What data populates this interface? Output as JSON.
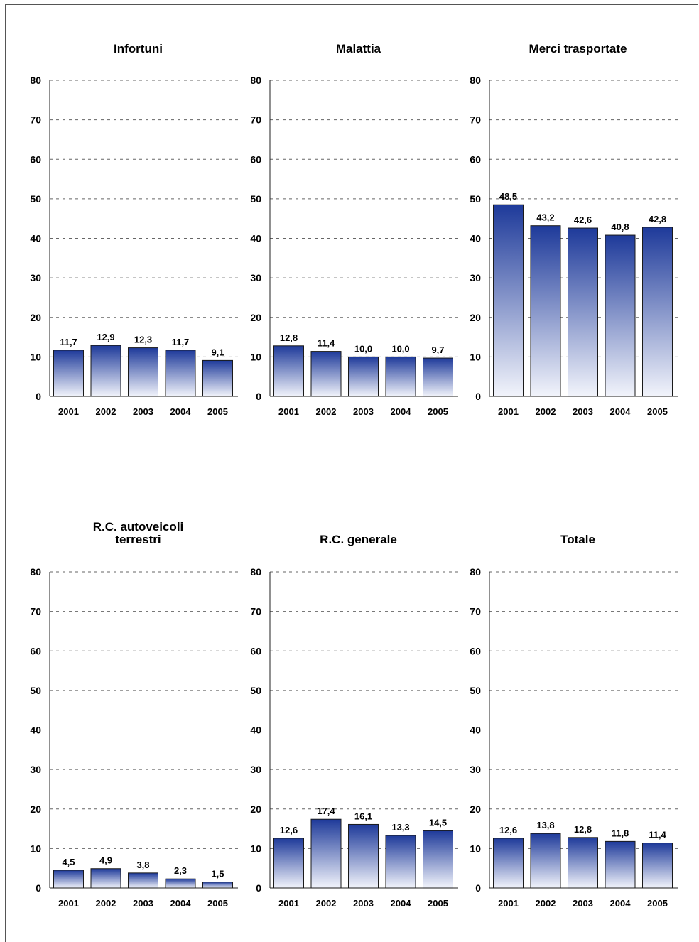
{
  "chart_data": [
    {
      "type": "bar",
      "title": [
        "Infortuni"
      ],
      "categories": [
        "2001",
        "2002",
        "2003",
        "2004",
        "2005"
      ],
      "values": [
        11.7,
        12.9,
        12.3,
        11.7,
        9.1
      ],
      "value_labels": [
        "11,7",
        "12,9",
        "12,3",
        "11,7",
        "9,1"
      ],
      "yticks": [
        "0",
        "10",
        "20",
        "30",
        "40",
        "50",
        "60",
        "70",
        "80"
      ],
      "ylim": [
        0,
        80
      ],
      "grid": "dashed horizontal"
    },
    {
      "type": "bar",
      "title": [
        "Malattia"
      ],
      "categories": [
        "2001",
        "2002",
        "2003",
        "2004",
        "2005"
      ],
      "values": [
        12.8,
        11.4,
        10.0,
        10.0,
        9.7
      ],
      "value_labels": [
        "12,8",
        "11,4",
        "10,0",
        "10,0",
        "9,7"
      ],
      "yticks": [
        "0",
        "10",
        "20",
        "30",
        "40",
        "50",
        "60",
        "70",
        "80"
      ],
      "ylim": [
        0,
        80
      ],
      "grid": "dashed horizontal"
    },
    {
      "type": "bar",
      "title": [
        "Merci trasportate"
      ],
      "categories": [
        "2001",
        "2002",
        "2003",
        "2004",
        "2005"
      ],
      "values": [
        48.5,
        43.2,
        42.6,
        40.8,
        42.8
      ],
      "value_labels": [
        "48,5",
        "43,2",
        "42,6",
        "40,8",
        "42,8"
      ],
      "yticks": [
        "0",
        "10",
        "20",
        "30",
        "40",
        "50",
        "60",
        "70",
        "80"
      ],
      "ylim": [
        0,
        80
      ],
      "grid": "dashed horizontal"
    },
    {
      "type": "bar",
      "title": [
        "R.C. autoveicoli",
        "terrestri"
      ],
      "categories": [
        "2001",
        "2002",
        "2003",
        "2004",
        "2005"
      ],
      "values": [
        4.5,
        4.9,
        3.8,
        2.3,
        1.5
      ],
      "value_labels": [
        "4,5",
        "4,9",
        "3,8",
        "2,3",
        "1,5"
      ],
      "yticks": [
        "0",
        "10",
        "20",
        "30",
        "40",
        "50",
        "60",
        "70",
        "80"
      ],
      "ylim": [
        0,
        80
      ],
      "grid": "dashed horizontal"
    },
    {
      "type": "bar",
      "title": [
        "R.C. generale"
      ],
      "categories": [
        "2001",
        "2002",
        "2003",
        "2004",
        "2005"
      ],
      "values": [
        12.6,
        17.4,
        16.1,
        13.3,
        14.5
      ],
      "value_labels": [
        "12,6",
        "17,4",
        "16,1",
        "13,3",
        "14,5"
      ],
      "yticks": [
        "0",
        "10",
        "20",
        "30",
        "40",
        "50",
        "60",
        "70",
        "80"
      ],
      "ylim": [
        0,
        80
      ],
      "grid": "dashed horizontal"
    },
    {
      "type": "bar",
      "title": [
        "Totale"
      ],
      "categories": [
        "2001",
        "2002",
        "2003",
        "2004",
        "2005"
      ],
      "values": [
        12.6,
        13.8,
        12.8,
        11.8,
        11.4
      ],
      "value_labels": [
        "12,6",
        "13,8",
        "12,8",
        "11,8",
        "11,4"
      ],
      "yticks": [
        "0",
        "10",
        "20",
        "30",
        "40",
        "50",
        "60",
        "70",
        "80"
      ],
      "ylim": [
        0,
        80
      ],
      "grid": "dashed horizontal"
    }
  ],
  "colors": {
    "bar_top": "#1e3a9a",
    "bar_bottom": "#f2f4fb",
    "bar_stroke": "#1a1a1a",
    "grid": "#666666"
  }
}
